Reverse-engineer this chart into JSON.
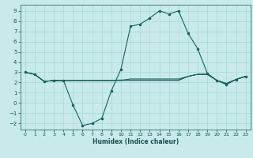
{
  "xlabel": "Humidex (Indice chaleur)",
  "bg_color": "#c8eaea",
  "grid_color": "#a8d8d8",
  "line_color": "#1a6060",
  "marker_color": "#1a6060",
  "xlim": [
    -0.5,
    23.5
  ],
  "ylim": [
    -2.6,
    9.6
  ],
  "xticks": [
    0,
    1,
    2,
    3,
    4,
    5,
    6,
    7,
    8,
    9,
    10,
    11,
    12,
    13,
    14,
    15,
    16,
    17,
    18,
    19,
    20,
    21,
    22,
    23
  ],
  "yticks": [
    -2,
    -1,
    0,
    1,
    2,
    3,
    4,
    5,
    6,
    7,
    8,
    9
  ],
  "x": [
    0,
    1,
    2,
    3,
    4,
    5,
    6,
    7,
    8,
    9,
    10,
    11,
    12,
    13,
    14,
    15,
    16,
    17,
    18,
    19,
    20,
    21,
    22,
    23
  ],
  "y_main": [
    3.0,
    2.8,
    2.1,
    2.2,
    2.2,
    -0.2,
    -2.2,
    -2.0,
    -1.5,
    1.2,
    3.3,
    7.5,
    7.7,
    8.3,
    9.0,
    8.7,
    9.0,
    6.8,
    5.3,
    2.9,
    2.2,
    1.8,
    2.3,
    2.6
  ],
  "y_flat1": [
    3.0,
    2.8,
    2.1,
    2.2,
    2.2,
    2.2,
    2.2,
    2.2,
    2.2,
    2.2,
    2.2,
    2.2,
    2.2,
    2.2,
    2.2,
    2.2,
    2.2,
    2.6,
    2.8,
    2.8,
    2.2,
    1.9,
    2.3,
    2.6
  ],
  "y_flat2": [
    3.0,
    2.8,
    2.1,
    2.2,
    2.2,
    2.2,
    2.2,
    2.2,
    2.2,
    2.2,
    2.2,
    2.35,
    2.35,
    2.35,
    2.35,
    2.35,
    2.35,
    2.6,
    2.8,
    2.8,
    2.2,
    1.9,
    2.3,
    2.6
  ],
  "y_flat3": [
    3.0,
    2.8,
    2.1,
    2.2,
    2.2,
    2.2,
    2.2,
    2.2,
    2.2,
    2.2,
    2.25,
    2.25,
    2.25,
    2.25,
    2.25,
    2.25,
    2.25,
    2.6,
    2.8,
    2.8,
    2.2,
    1.9,
    2.3,
    2.6
  ]
}
